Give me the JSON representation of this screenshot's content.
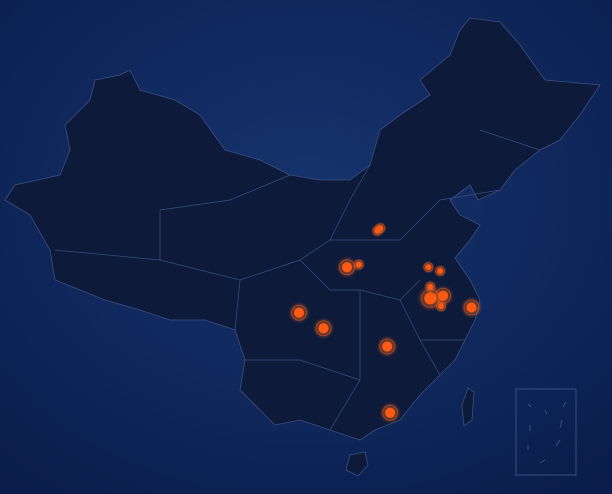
{
  "chart_data": {
    "type": "geo-scatter",
    "color": "#ff5a14",
    "x": [
      111.5,
      111.8,
      108.4,
      109.6,
      116.7,
      117.9,
      116.9,
      116.9,
      118.2,
      118.0,
      121.1,
      103.5,
      106.0,
      112.5,
      112.8
    ],
    "y": [
      36.9,
      37.1,
      34.1,
      34.3,
      34.1,
      33.8,
      32.6,
      31.7,
      31.9,
      31.1,
      31.0,
      30.6,
      29.4,
      28.0,
      22.9
    ],
    "sizes": [
      3,
      3,
      5,
      3,
      3,
      3,
      3,
      6,
      5,
      3,
      5,
      5,
      5,
      5,
      5
    ]
  }
}
